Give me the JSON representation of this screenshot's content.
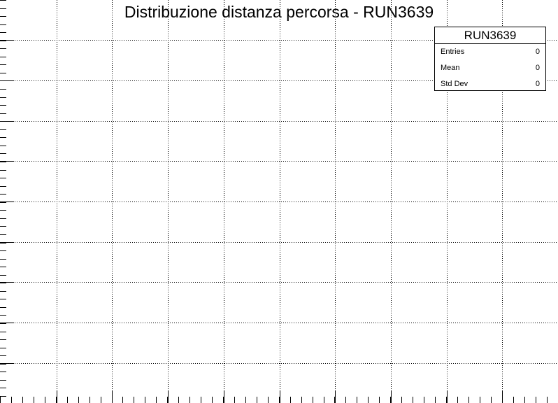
{
  "chart_data": {
    "type": "histogram",
    "title": "Distribuzione distanza percorsa - RUN3639",
    "xlabel": "",
    "ylabel": "",
    "grid": true,
    "series": [],
    "statbox": {
      "name": "RUN3639",
      "rows": [
        {
          "label": "Entries",
          "value": "0"
        },
        {
          "label": "Mean",
          "value": "0"
        },
        {
          "label": "Std Dev",
          "value": "0"
        }
      ]
    }
  }
}
